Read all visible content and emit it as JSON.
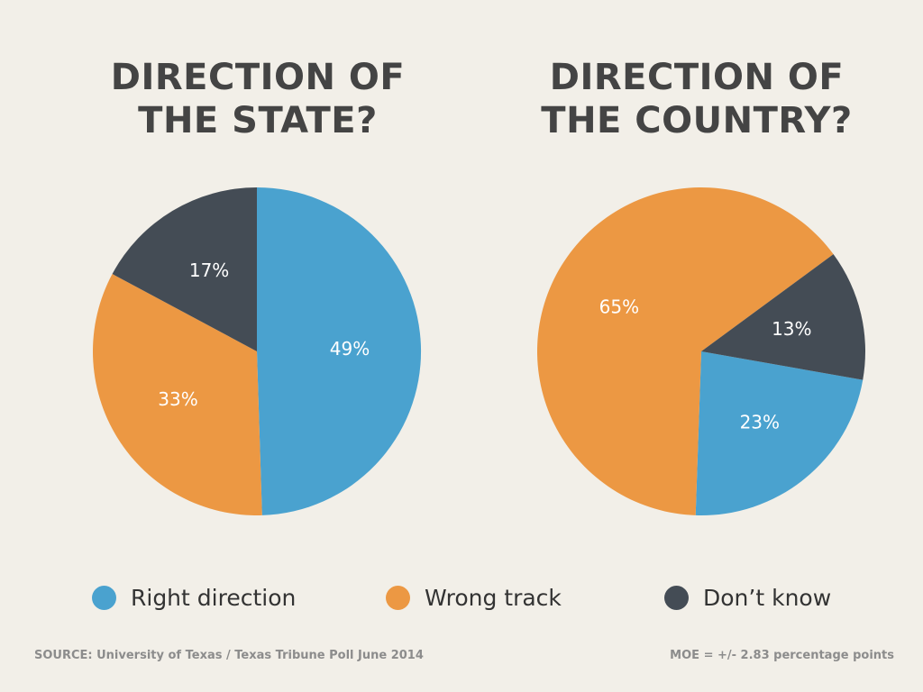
{
  "colors": {
    "background": "#f2efe8",
    "right_direction": "#4aa2cf",
    "wrong_track": "#ec9843",
    "dont_know": "#444c55",
    "title": "#444444",
    "footer": "#8c8c8c"
  },
  "legend": [
    {
      "label": "Right direction",
      "color": "#4aa2cf"
    },
    {
      "label": "Wrong track",
      "color": "#ec9843"
    },
    {
      "label": "Don’t know",
      "color": "#444c55"
    }
  ],
  "footer": {
    "source": "SOURCE: University of Texas / Texas Tribune Poll June 2014",
    "moe": "MOE = +/- 2.83 percentage points"
  },
  "chart_data": [
    {
      "type": "pie",
      "title_lines": [
        "DIRECTION OF",
        "THE STATE?"
      ],
      "labels": [
        "Right direction",
        "Wrong track",
        "Don’t know"
      ],
      "values": [
        49,
        33,
        17
      ],
      "value_labels": [
        "49%",
        "33%",
        "17%"
      ],
      "colors": [
        "#4aa2cf",
        "#ec9843",
        "#444c55"
      ]
    },
    {
      "type": "pie",
      "title_lines": [
        "DIRECTION OF",
        "THE COUNTRY?"
      ],
      "labels": [
        "Right direction",
        "Wrong track",
        "Don’t know"
      ],
      "values": [
        23,
        65,
        13
      ],
      "value_labels": [
        "23%",
        "65%",
        "13%"
      ],
      "colors": [
        "#4aa2cf",
        "#ec9843",
        "#444c55"
      ]
    }
  ]
}
